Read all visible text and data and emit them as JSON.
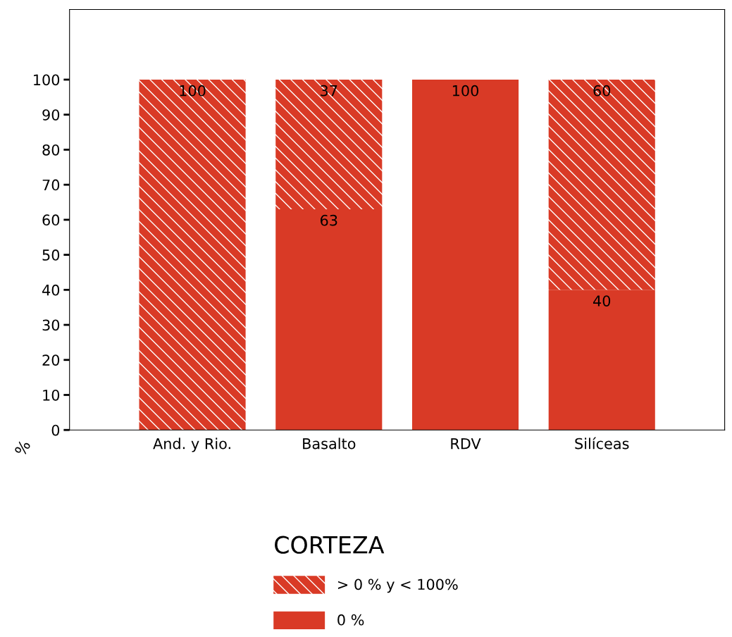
{
  "chart_data": {
    "type": "bar",
    "stacked": true,
    "ylabel": "%",
    "legend_title": "CORTEZA",
    "legend": "bottom",
    "grid": false,
    "categories": [
      "And. y Rio.",
      "Basalto",
      "RDV",
      "Silíceas"
    ],
    "ylim": [
      0,
      120
    ],
    "yticks": [
      0,
      10,
      20,
      30,
      40,
      50,
      60,
      70,
      80,
      90,
      100
    ],
    "series": [
      {
        "name": "0 %",
        "color": "#d93a26",
        "values": [
          0,
          63,
          100,
          40
        ],
        "value_labels": [
          null,
          "63",
          "100",
          "40"
        ]
      },
      {
        "name": "> 0 % y < 100%",
        "color": "#d93a26",
        "values": [
          100,
          37,
          0,
          60
        ],
        "value_labels": [
          "100",
          "37",
          null,
          "60"
        ]
      }
    ]
  }
}
